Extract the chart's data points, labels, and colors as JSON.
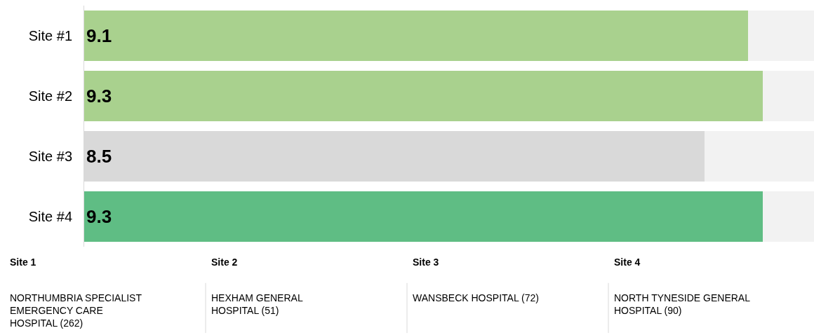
{
  "chart_data": {
    "type": "bar",
    "orientation": "horizontal",
    "stacked": true,
    "categories": [
      "Site #1",
      "Site #2",
      "Site #3",
      "Site #4"
    ],
    "xlim": [
      0,
      10
    ],
    "tick_labels": "y",
    "series": [
      {
        "colors": [
          "#a9d18e",
          "#a9d18e",
          "#d9d9d9",
          "#5fbd84"
        ],
        "values": [
          9.1,
          9.3,
          8.5,
          9.3
        ],
        "value_labels": [
          "9.1",
          "9.3",
          "8.5",
          "9.3"
        ]
      },
      {
        "color": "#f2f2f2",
        "values": [
          0.9,
          0.7,
          1.5,
          0.7
        ]
      }
    ],
    "annotations": [
      "Site 1",
      "NORTHUMBRIA SPECIALIST EMERGENCY CARE HOSPITAL (262)",
      "Site 2",
      "HEXHAM GENERAL HOSPITAL (51)",
      "Site 3",
      "WANSBECK HOSPITAL (72)",
      "Site 4",
      "NORTH TYNESIDE GENERAL HOSPITAL (90)"
    ]
  }
}
